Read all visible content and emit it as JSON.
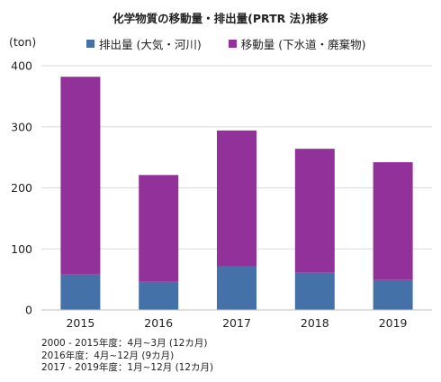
{
  "chart_data": {
    "type": "bar",
    "stacked": true,
    "title": "化学物質の移動量・排出量(PRTR 法)推移",
    "ylabel": "(ton)",
    "categories": [
      "2015",
      "2016",
      "2017",
      "2018",
      "2019"
    ],
    "series": [
      {
        "name": "排出量 (大気・河川)",
        "color": "#4472a8",
        "values": [
          58,
          46,
          71,
          61,
          49
        ]
      },
      {
        "name": "移動量 (下水道・廃棄物)",
        "color": "#93319a",
        "values": [
          324,
          175,
          223,
          203,
          193
        ]
      }
    ],
    "ylim": [
      0,
      400
    ],
    "yticks": [
      "0",
      "100",
      "200",
      "300",
      "400"
    ],
    "grid": true,
    "legend_position": "top"
  },
  "notes": [
    "2000 -  2015年度：4月~3月 (12カ月)",
    "2016年度：4月~12月 (9カ月)",
    "2017 - 2019年度：1月~12月 (12カ月)"
  ]
}
